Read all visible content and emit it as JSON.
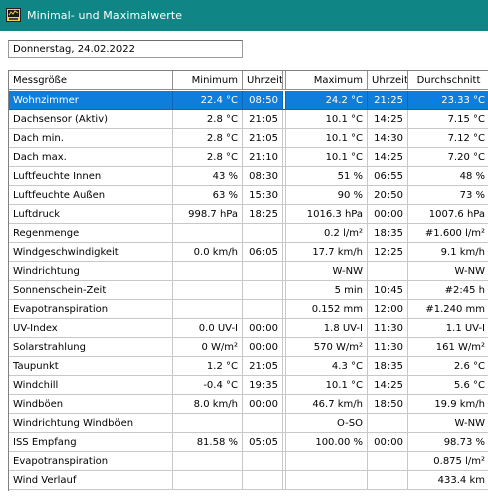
{
  "window": {
    "title": "Minimal- und Maximalwerte"
  },
  "date_field": {
    "value": "Donnerstag, 24.02.2022"
  },
  "table": {
    "columns": [
      "Messgröße",
      "Minimum",
      "Uhrzeit",
      "Maximum",
      "Uhrzeit",
      "Durchschnitt"
    ],
    "rows": [
      [
        "Wohnzimmer",
        "22.4 °C",
        "08:50",
        "24.2 °C",
        "21:25",
        "23.33 °C"
      ],
      [
        "Dachsensor (Aktiv)",
        "2.8 °C",
        "21:05",
        "10.1 °C",
        "14:25",
        "7.15 °C"
      ],
      [
        "Dach min.",
        "2.8 °C",
        "21:05",
        "10.1 °C",
        "14:30",
        "7.12 °C"
      ],
      [
        "Dach max.",
        "2.8 °C",
        "21:10",
        "10.1 °C",
        "14:25",
        "7.20 °C"
      ],
      [
        "Luftfeuchte Innen",
        "43 %",
        "08:30",
        "51 %",
        "06:55",
        "48 %"
      ],
      [
        "Luftfeuchte Außen",
        "63 %",
        "15:30",
        "90 %",
        "20:50",
        "73 %"
      ],
      [
        "Luftdruck",
        "998.7 hPa",
        "18:25",
        "1016.3 hPa",
        "00:00",
        "1007.6 hPa"
      ],
      [
        "Regenmenge",
        "",
        "",
        "0.2 l/m²",
        "18:35",
        "#1.600 l/m²"
      ],
      [
        "Windgeschwindigkeit",
        "0.0 km/h",
        "06:05",
        "17.7 km/h",
        "12:25",
        "9.1 km/h"
      ],
      [
        "Windrichtung",
        "",
        "",
        "W-NW",
        "",
        "W-NW"
      ],
      [
        "Sonnenschein-Zeit",
        "",
        "",
        "5 min",
        "10:45",
        "#2:45 h"
      ],
      [
        "Evapotranspiration",
        "",
        "",
        "0.152 mm",
        "12:00",
        "#1.240 mm"
      ],
      [
        "UV-Index",
        "0.0 UV-I",
        "00:00",
        "1.8 UV-I",
        "11:30",
        "1.1 UV-I"
      ],
      [
        "Solarstrahlung",
        "0 W/m²",
        "00:00",
        "570 W/m²",
        "11:30",
        "161 W/m²"
      ],
      [
        "Taupunkt",
        "1.2 °C",
        "21:05",
        "4.3 °C",
        "18:35",
        "2.6 °C"
      ],
      [
        "Windchill",
        "-0.4 °C",
        "19:35",
        "10.1 °C",
        "14:25",
        "5.6 °C"
      ],
      [
        "Windböen",
        "8.0 km/h",
        "00:00",
        "46.7 km/h",
        "18:50",
        "19.9 km/h"
      ],
      [
        "Windrichtung Windböen",
        "",
        "",
        "O-SO",
        "",
        "W-NW"
      ],
      [
        "ISS Empfang",
        "81.58 %",
        "05:05",
        "100.00 %",
        "00:00",
        "98.73 %"
      ],
      [
        "Evapotranspiration",
        "",
        "",
        "",
        "",
        "0.875 l/m²"
      ],
      [
        "Wind Verlauf",
        "",
        "",
        "",
        "",
        "433.4 km"
      ]
    ]
  },
  "colors": {
    "titlebar": "#0f8585",
    "selection": "#0e7ddc"
  }
}
